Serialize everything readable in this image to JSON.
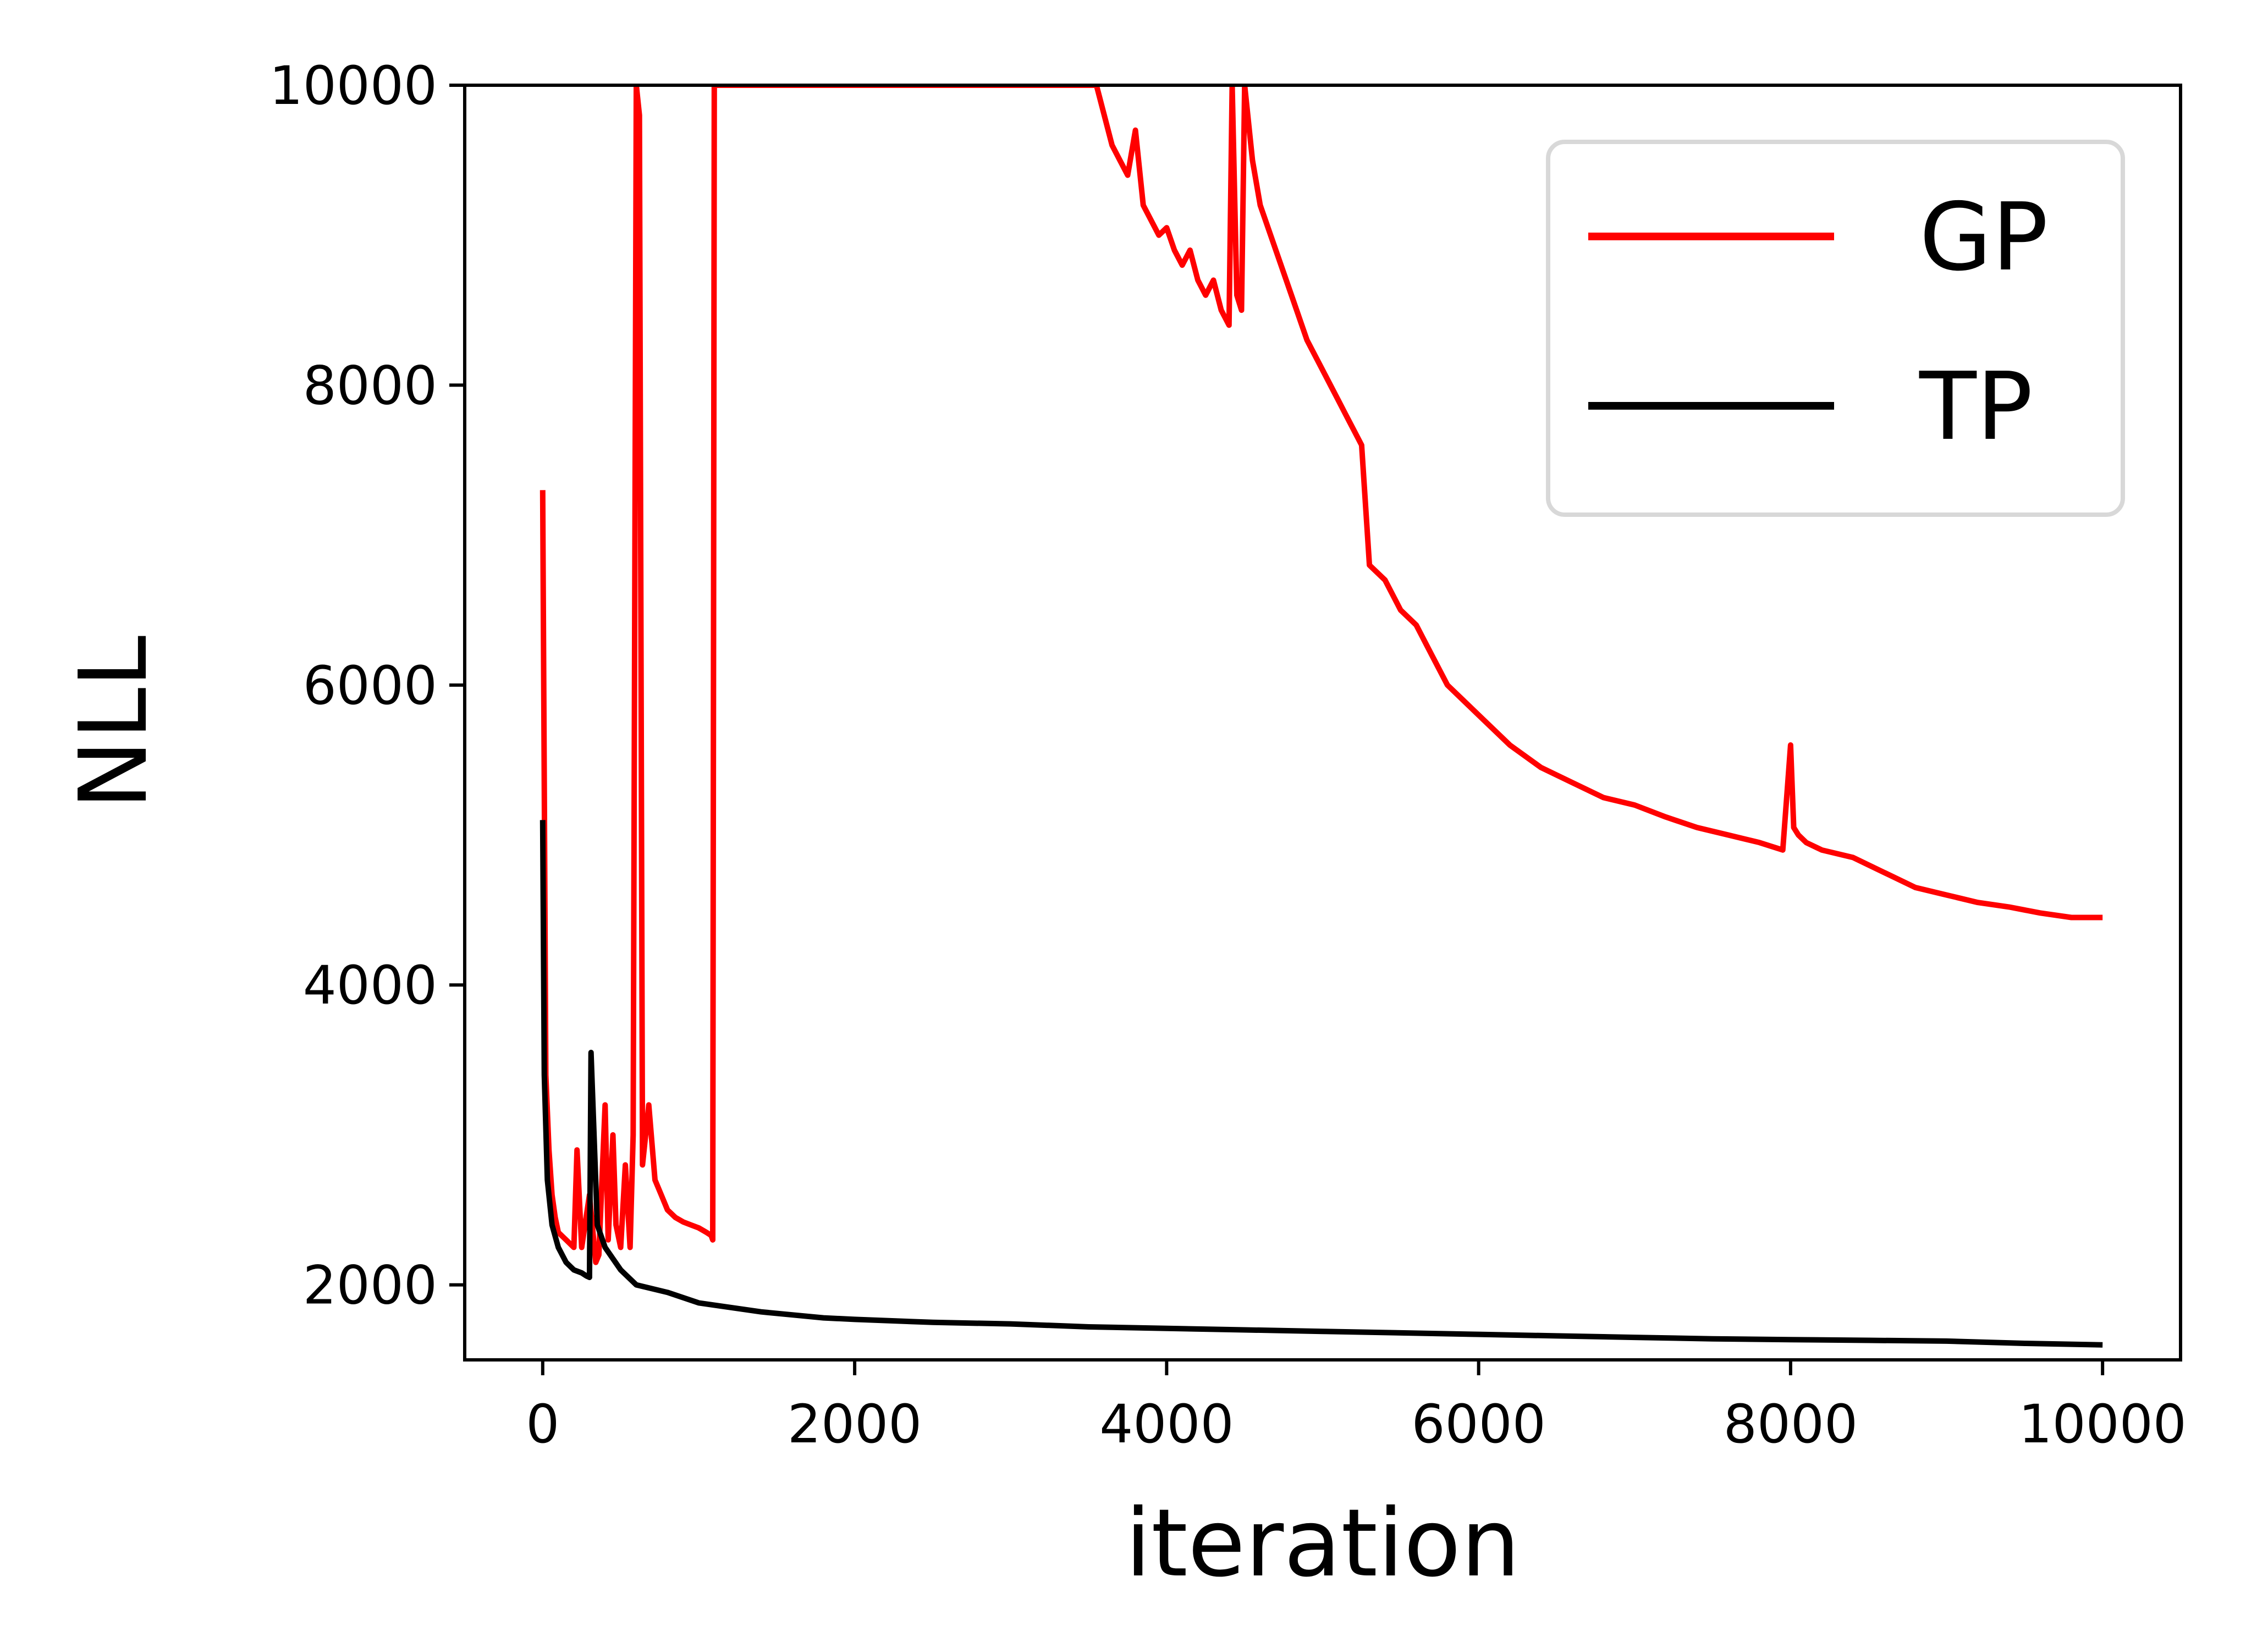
{
  "chart_data": {
    "type": "line",
    "xlabel": "iteration",
    "ylabel": "NLL",
    "xlim": [
      -500,
      10500
    ],
    "ylim": [
      1500,
      10000
    ],
    "xticks": [
      0,
      2000,
      4000,
      6000,
      8000,
      10000
    ],
    "yticks": [
      2000,
      4000,
      6000,
      8000,
      10000
    ],
    "xtick_labels": [
      "0",
      "2000",
      "4000",
      "6000",
      "8000",
      "10000"
    ],
    "ytick_labels": [
      "2000",
      "4000",
      "6000",
      "8000",
      "10000"
    ],
    "grid": false,
    "legend_position": "top-right",
    "series": [
      {
        "name": "GP",
        "color": "#ff0000",
        "x": [
          0,
          20,
          40,
          60,
          80,
          100,
          150,
          200,
          220,
          250,
          300,
          340,
          360,
          400,
          420,
          450,
          470,
          500,
          530,
          560,
          580,
          600,
          620,
          640,
          680,
          720,
          760,
          800,
          850,
          900,
          950,
          1000,
          1050,
          1080,
          1090,
          1100,
          3550,
          3600,
          3650,
          3700,
          3750,
          3800,
          3850,
          3900,
          3950,
          4000,
          4050,
          4100,
          4150,
          4200,
          4250,
          4300,
          4350,
          4400,
          4420,
          4450,
          4480,
          4500,
          4550,
          4600,
          4700,
          4800,
          4900,
          5000,
          5100,
          5150,
          5200,
          5250,
          5300,
          5400,
          5500,
          5600,
          5700,
          5800,
          5900,
          6000,
          6200,
          6400,
          6600,
          6800,
          7000,
          7200,
          7400,
          7600,
          7800,
          7950,
          8000,
          8020,
          8050,
          8100,
          8200,
          8400,
          8600,
          8800,
          9000,
          9200,
          9400,
          9600,
          9800,
          10000
        ],
        "y": [
          7300,
          3400,
          2900,
          2600,
          2450,
          2350,
          2300,
          2250,
          2900,
          2250,
          2600,
          2150,
          2200,
          3200,
          2300,
          3000,
          2400,
          2250,
          2800,
          2250,
          3000,
          10000,
          9800,
          2800,
          3200,
          2700,
          2600,
          2500,
          2450,
          2420,
          2400,
          2380,
          2350,
          2330,
          2300,
          10000,
          10000,
          9800,
          9600,
          9500,
          9400,
          9700,
          9200,
          9100,
          9000,
          9050,
          8900,
          8800,
          8900,
          8700,
          8600,
          8700,
          8500,
          8400,
          10000,
          8600,
          8500,
          10000,
          9500,
          9200,
          8900,
          8600,
          8300,
          8100,
          7900,
          7800,
          7700,
          7600,
          6800,
          6700,
          6500,
          6400,
          6200,
          6000,
          5900,
          5800,
          5600,
          5450,
          5350,
          5250,
          5200,
          5120,
          5050,
          5000,
          4950,
          4900,
          5600,
          5050,
          5000,
          4950,
          4900,
          4850,
          4750,
          4650,
          4600,
          4550,
          4520,
          4480,
          4450,
          4450
        ]
      },
      {
        "name": "TP",
        "color": "#000000",
        "x": [
          0,
          10,
          30,
          60,
          100,
          150,
          200,
          250,
          280,
          300,
          310,
          350,
          400,
          500,
          600,
          800,
          1000,
          1200,
          1400,
          1600,
          1800,
          2000,
          2500,
          3000,
          3500,
          4000,
          4500,
          5000,
          5500,
          6000,
          6500,
          7000,
          7500,
          8000,
          8500,
          9000,
          9500,
          10000
        ],
        "y": [
          5100,
          3400,
          2700,
          2400,
          2250,
          2150,
          2100,
          2080,
          2060,
          2050,
          3550,
          2400,
          2250,
          2100,
          2000,
          1950,
          1880,
          1850,
          1820,
          1800,
          1780,
          1770,
          1750,
          1740,
          1720,
          1710,
          1700,
          1690,
          1680,
          1670,
          1660,
          1650,
          1640,
          1635,
          1630,
          1625,
          1610,
          1600
        ]
      }
    ]
  }
}
